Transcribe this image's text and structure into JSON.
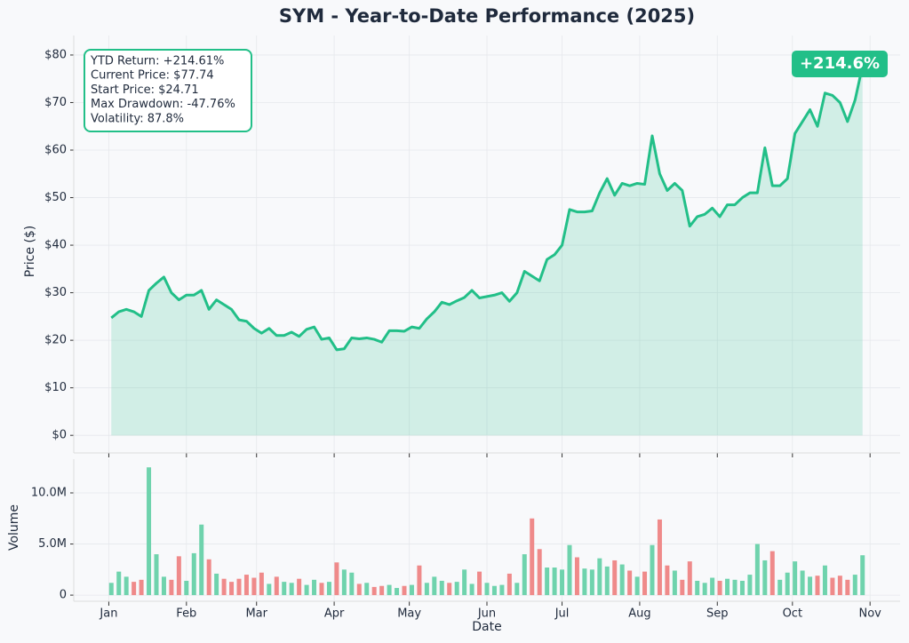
{
  "chart_data": [
    {
      "type": "line",
      "title": "SYM - Year-to-Date Performance (2025)",
      "ylabel": "Price ($)",
      "color": "#22bf88",
      "area": true,
      "grid": true,
      "annotations": [
        "YTD Return: +214.61%",
        "Current Price: $77.74",
        "Start Price: $24.71",
        "Max Drawdown: -47.76%",
        "Volatility: 87.8%"
      ],
      "badge": "+214.6%",
      "x": [
        1,
        4,
        7,
        10,
        13,
        16,
        19,
        22,
        25,
        28,
        31,
        34,
        37,
        40,
        43,
        46,
        49,
        52,
        55,
        58,
        61,
        64,
        67,
        70,
        73,
        76,
        79,
        82,
        85,
        88,
        91,
        94,
        97,
        100,
        103,
        106,
        109,
        112,
        115,
        118,
        121,
        124,
        127,
        130,
        133,
        136,
        139,
        142,
        145,
        148,
        151,
        154,
        157,
        160,
        163,
        166,
        169,
        172,
        175,
        178,
        181,
        184,
        187,
        190,
        193,
        196,
        199,
        202,
        205,
        208,
        211,
        214,
        217,
        220,
        223,
        226,
        229,
        232,
        235,
        238,
        241,
        244,
        247,
        250,
        253,
        256,
        259,
        262,
        265,
        268,
        271,
        274,
        277,
        280,
        283,
        286,
        289,
        292,
        295,
        298,
        301
      ],
      "values": [
        24.71,
        26,
        26.5,
        26,
        25,
        30.5,
        32,
        33.3,
        30,
        28.5,
        29.5,
        29.5,
        30.5,
        26.5,
        28.5,
        27.5,
        26.5,
        24.3,
        24,
        22.5,
        21.5,
        22.5,
        21,
        21,
        21.7,
        20.8,
        22.3,
        22.8,
        20.2,
        20.5,
        18,
        18.2,
        20.5,
        20.3,
        20.5,
        20.2,
        19.6,
        22,
        22,
        21.9,
        22.8,
        22.5,
        24.5,
        26,
        28,
        27.5,
        28.3,
        29,
        30.5,
        28.9,
        29.2,
        29.5,
        30,
        28.2,
        30,
        34.5,
        33.5,
        32.5,
        37,
        38,
        40,
        47.5,
        47,
        47,
        47.2,
        51,
        54,
        50.5,
        53,
        52.5,
        53,
        52.8,
        63,
        55,
        51.5,
        53,
        51.5,
        44,
        46,
        46.5,
        47.8,
        46,
        48.5,
        48.5,
        50,
        51,
        51,
        60.5,
        52.5,
        52.5,
        54,
        63.5,
        66,
        68.5,
        65,
        72,
        71.5,
        70,
        66,
        70.5,
        77.74
      ],
      "xlim": [
        -14,
        316
      ],
      "ylim": [
        -3.7,
        84.1
      ],
      "yticks": [
        {
          "value": 0,
          "label": "$0"
        },
        {
          "value": 10,
          "label": "$10"
        },
        {
          "value": 20,
          "label": "$20"
        },
        {
          "value": 30,
          "label": "$30"
        },
        {
          "value": 40,
          "label": "$40"
        },
        {
          "value": 50,
          "label": "$50"
        },
        {
          "value": 60,
          "label": "$60"
        },
        {
          "value": 70,
          "label": "$70"
        },
        {
          "value": 80,
          "label": "$80"
        }
      ]
    },
    {
      "type": "bar",
      "xlabel": "Date",
      "ylabel": "Volume",
      "up_color": "#6fd3ad",
      "down_color": "#ef8a8a",
      "grid": true,
      "x": [
        1,
        4,
        7,
        10,
        13,
        16,
        19,
        22,
        25,
        28,
        31,
        34,
        37,
        40,
        43,
        46,
        49,
        52,
        55,
        58,
        61,
        64,
        67,
        70,
        73,
        76,
        79,
        82,
        85,
        88,
        91,
        94,
        97,
        100,
        103,
        106,
        109,
        112,
        115,
        118,
        121,
        124,
        127,
        130,
        133,
        136,
        139,
        142,
        145,
        148,
        151,
        154,
        157,
        160,
        163,
        166,
        169,
        172,
        175,
        178,
        181,
        184,
        187,
        190,
        193,
        196,
        199,
        202,
        205,
        208,
        211,
        214,
        217,
        220,
        223,
        226,
        229,
        232,
        235,
        238,
        241,
        244,
        247,
        250,
        253,
        256,
        259,
        262,
        265,
        268,
        271,
        274,
        277,
        280,
        283,
        286,
        289,
        292,
        295,
        298,
        301
      ],
      "values": [
        1200000,
        2300000,
        1800000,
        1300000,
        1500000,
        12500000,
        4000000,
        1800000,
        1500000,
        3800000,
        1400000,
        4100000,
        6900000,
        3500000,
        2100000,
        1600000,
        1300000,
        1600000,
        2000000,
        1700000,
        2200000,
        1100000,
        1800000,
        1300000,
        1200000,
        1600000,
        1000000,
        1500000,
        1200000,
        1300000,
        3200000,
        2500000,
        2200000,
        1100000,
        1200000,
        800000,
        900000,
        1000000,
        700000,
        900000,
        1000000,
        2900000,
        1200000,
        1800000,
        1400000,
        1200000,
        1300000,
        2500000,
        1100000,
        2300000,
        1200000,
        900000,
        1000000,
        2100000,
        1200000,
        4000000,
        7500000,
        4500000,
        2700000,
        2700000,
        2500000,
        4900000,
        3700000,
        2600000,
        2500000,
        3600000,
        2800000,
        3400000,
        3000000,
        2400000,
        1800000,
        2300000,
        4900000,
        7400000,
        2900000,
        2400000,
        1500000,
        3300000,
        1400000,
        1200000,
        1700000,
        1400000,
        1600000,
        1500000,
        1400000,
        2000000,
        5000000,
        3400000,
        4300000,
        1500000,
        2200000,
        3300000,
        2400000,
        1800000,
        1900000,
        2900000,
        1700000,
        1900000,
        1500000,
        2000000,
        3900000
      ],
      "xlim": [
        -14,
        316
      ],
      "ylim": [
        -600000,
        13300000
      ],
      "xticks": [
        {
          "value": 0,
          "label": "Jan"
        },
        {
          "value": 31,
          "label": "Feb"
        },
        {
          "value": 59,
          "label": "Mar"
        },
        {
          "value": 90,
          "label": "Apr"
        },
        {
          "value": 120,
          "label": "May"
        },
        {
          "value": 151,
          "label": "Jun"
        },
        {
          "value": 181,
          "label": "Jul"
        },
        {
          "value": 212,
          "label": "Aug"
        },
        {
          "value": 243,
          "label": "Sep"
        },
        {
          "value": 273,
          "label": "Oct"
        },
        {
          "value": 304,
          "label": "Nov"
        }
      ],
      "yticks": [
        0,
        {
          "value": 5000000,
          "label": "5.0M"
        },
        {
          "value": 10000000,
          "label": "10.0M"
        }
      ]
    }
  ]
}
